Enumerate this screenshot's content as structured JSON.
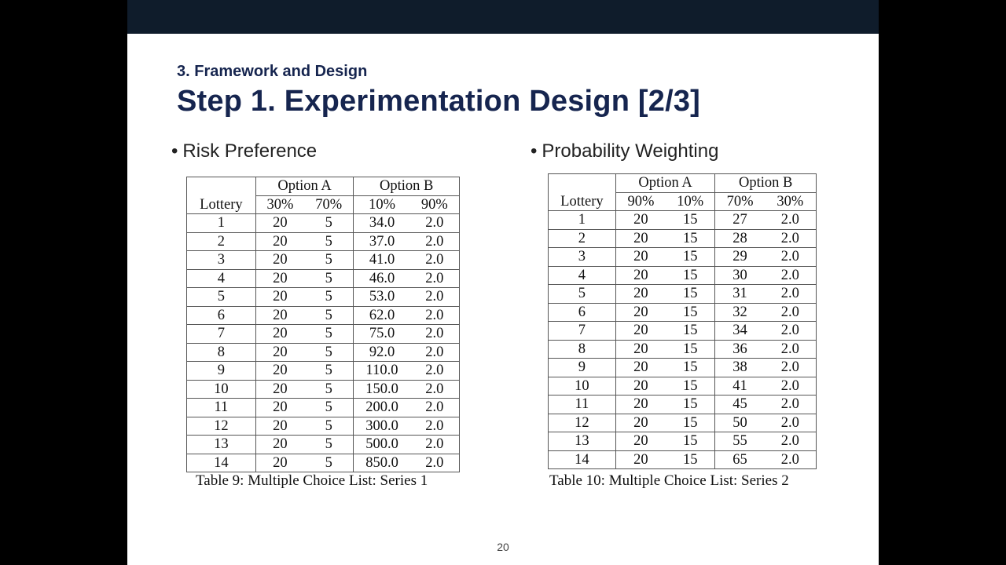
{
  "slide": {
    "section": "3. Framework and Design",
    "title": "Step 1. Experimentation Design [2/3]",
    "page_number": "20",
    "bullet_glyph": "•"
  },
  "left": {
    "heading": "Risk Preference",
    "group_headers": [
      "Option A",
      "Option B"
    ],
    "col_headers": [
      "Lottery",
      "30%",
      "70%",
      "10%",
      "90%"
    ],
    "rows": [
      [
        "1",
        "20",
        "5",
        "34.0",
        "2.0"
      ],
      [
        "2",
        "20",
        "5",
        "37.0",
        "2.0"
      ],
      [
        "3",
        "20",
        "5",
        "41.0",
        "2.0"
      ],
      [
        "4",
        "20",
        "5",
        "46.0",
        "2.0"
      ],
      [
        "5",
        "20",
        "5",
        "53.0",
        "2.0"
      ],
      [
        "6",
        "20",
        "5",
        "62.0",
        "2.0"
      ],
      [
        "7",
        "20",
        "5",
        "75.0",
        "2.0"
      ],
      [
        "8",
        "20",
        "5",
        "92.0",
        "2.0"
      ],
      [
        "9",
        "20",
        "5",
        "110.0",
        "2.0"
      ],
      [
        "10",
        "20",
        "5",
        "150.0",
        "2.0"
      ],
      [
        "11",
        "20",
        "5",
        "200.0",
        "2.0"
      ],
      [
        "12",
        "20",
        "5",
        "300.0",
        "2.0"
      ],
      [
        "13",
        "20",
        "5",
        "500.0",
        "2.0"
      ],
      [
        "14",
        "20",
        "5",
        "850.0",
        "2.0"
      ]
    ],
    "caption": "Table 9: Multiple Choice List: Series 1"
  },
  "right": {
    "heading": "Probability Weighting",
    "group_headers": [
      "Option A",
      "Option B"
    ],
    "col_headers": [
      "Lottery",
      "90%",
      "10%",
      "70%",
      "30%"
    ],
    "rows": [
      [
        "1",
        "20",
        "15",
        "27",
        "2.0"
      ],
      [
        "2",
        "20",
        "15",
        "28",
        "2.0"
      ],
      [
        "3",
        "20",
        "15",
        "29",
        "2.0"
      ],
      [
        "4",
        "20",
        "15",
        "30",
        "2.0"
      ],
      [
        "5",
        "20",
        "15",
        "31",
        "2.0"
      ],
      [
        "6",
        "20",
        "15",
        "32",
        "2.0"
      ],
      [
        "7",
        "20",
        "15",
        "34",
        "2.0"
      ],
      [
        "8",
        "20",
        "15",
        "36",
        "2.0"
      ],
      [
        "9",
        "20",
        "15",
        "38",
        "2.0"
      ],
      [
        "10",
        "20",
        "15",
        "41",
        "2.0"
      ],
      [
        "11",
        "20",
        "15",
        "45",
        "2.0"
      ],
      [
        "12",
        "20",
        "15",
        "50",
        "2.0"
      ],
      [
        "13",
        "20",
        "15",
        "55",
        "2.0"
      ],
      [
        "14",
        "20",
        "15",
        "65",
        "2.0"
      ]
    ],
    "caption": "Table 10: Multiple Choice List: Series 2"
  }
}
